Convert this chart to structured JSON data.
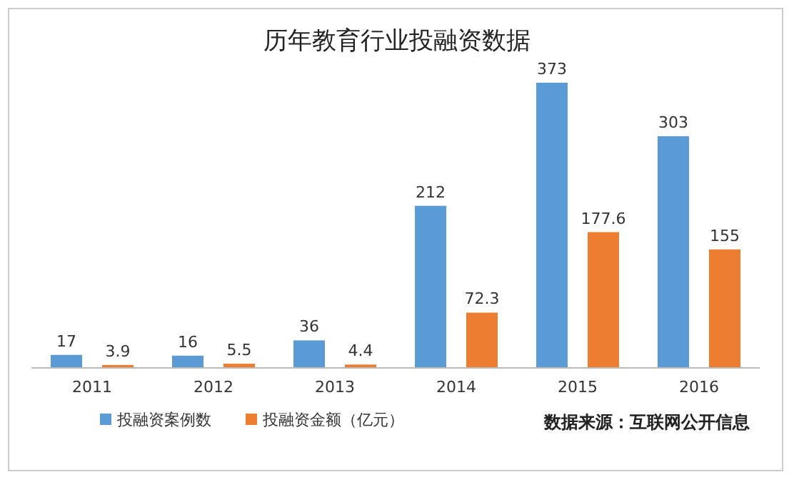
{
  "chart_data": {
    "type": "bar",
    "title": "历年教育行业投融资数据",
    "categories": [
      "2011",
      "2012",
      "2013",
      "2014",
      "2015",
      "2016"
    ],
    "series": [
      {
        "name": "投融资案例数",
        "color": "#5b9bd5",
        "values": [
          17,
          16,
          36,
          212,
          373,
          303
        ]
      },
      {
        "name": "投融资金额（亿元）",
        "color": "#ed7d31",
        "values": [
          3.9,
          5.5,
          4.4,
          72.3,
          177.6,
          155
        ]
      }
    ],
    "data_labels": true,
    "legend": "bottom",
    "annotations": [
      "数据来源：互联网公开信息"
    ]
  }
}
